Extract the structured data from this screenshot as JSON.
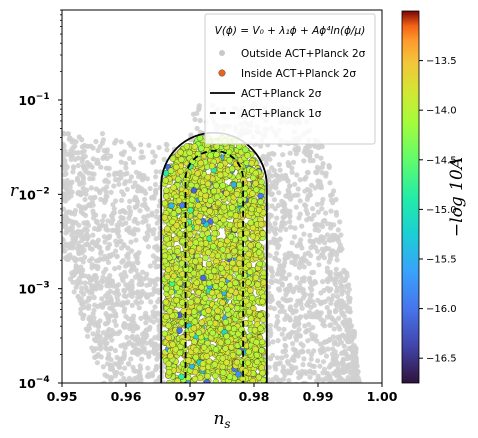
{
  "chart_data": {
    "type": "scatter",
    "xlabel": "n_s",
    "ylabel": "r",
    "xlim": [
      0.95,
      1.0
    ],
    "ylim": [
      0.0001,
      0.9
    ],
    "yscale": "log",
    "x_ticks": [
      0.95,
      0.96,
      0.97,
      0.98,
      0.99,
      1.0
    ],
    "x_tick_labels": [
      "0.95",
      "0.96",
      "0.97",
      "0.98",
      "0.99",
      "1.00"
    ],
    "y_ticks": [
      0.0001,
      0.001,
      0.01,
      0.1
    ],
    "y_tick_labels": [
      {
        "base": "10",
        "exp": "−4"
      },
      {
        "base": "10",
        "exp": "−3"
      },
      {
        "base": "10",
        "exp": "−2"
      },
      {
        "base": "10",
        "exp": "−1"
      }
    ],
    "legend": {
      "placement": "top-right",
      "model": "V(ϕ) = V₀ + λ₁ϕ + Aϕ⁴ln(ϕ/μ)",
      "entries": [
        {
          "label": "Outside ACT+Planck 2σ",
          "marker": "circle",
          "color": "#c8c8c8"
        },
        {
          "label": "Inside ACT+Planck 2σ",
          "marker": "circle",
          "color": "#e8641e"
        },
        {
          "label": "ACT+Planck 2σ",
          "marker": "solid-line",
          "color": "#000000"
        },
        {
          "label": "ACT+Planck 1σ",
          "marker": "dashed-line",
          "color": "#000000"
        }
      ]
    },
    "colorbar": {
      "label": "−log 10A",
      "range": [
        -16.75,
        -13.0
      ],
      "ticks": [
        -13.5,
        -14.0,
        -14.5,
        -15.0,
        -15.5,
        -16.0,
        -16.5
      ],
      "tick_labels": [
        "−13.5",
        "−14.0",
        "−14.5",
        "−15.0",
        "−15.5",
        "−16.0",
        "−16.5"
      ],
      "colormap": "turbo"
    },
    "contours": {
      "sigma2": {
        "x_min": 0.9655,
        "x_max": 0.982,
        "r_top": 0.045,
        "r_bottom": 0.0001
      },
      "sigma1": {
        "x_min": 0.9693,
        "x_max": 0.9783,
        "r_top": 0.029,
        "r_bottom": 0.0001
      }
    },
    "series": [
      {
        "name": "Outside ACT+Planck 2σ",
        "region": "x 0.95–0.997, r 1e-4 – 0.1",
        "color": "#c8c8c8"
      },
      {
        "name": "Inside ACT+Planck 2σ",
        "region": "inside 2σ contour",
        "color_value_typical": -13.9
      }
    ]
  }
}
